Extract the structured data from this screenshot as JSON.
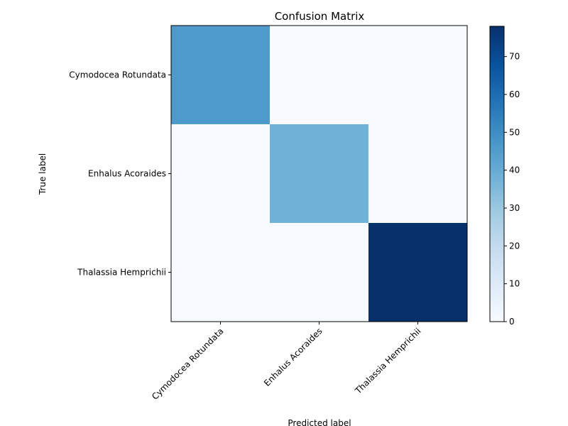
{
  "chart_data": {
    "type": "heatmap",
    "title": "Confusion Matrix",
    "xlabel": "Predicted label",
    "ylabel": "True label",
    "x_categories": [
      "Cymodocea Rotundata",
      "Enhalus Acoraides",
      "Thalassia Hemprichii"
    ],
    "y_categories": [
      "Cymodocea Rotundata",
      "Enhalus Acoraides",
      "Thalassia Hemprichii"
    ],
    "values": [
      [
        46,
        0,
        0
      ],
      [
        0,
        38,
        0
      ],
      [
        0,
        0,
        78
      ]
    ],
    "colormap": "Blues",
    "colorbar": {
      "min": 0,
      "max": 78,
      "ticks": [
        0,
        10,
        20,
        30,
        40,
        50,
        60,
        70
      ]
    },
    "x_tick_rotation_deg": 45
  }
}
